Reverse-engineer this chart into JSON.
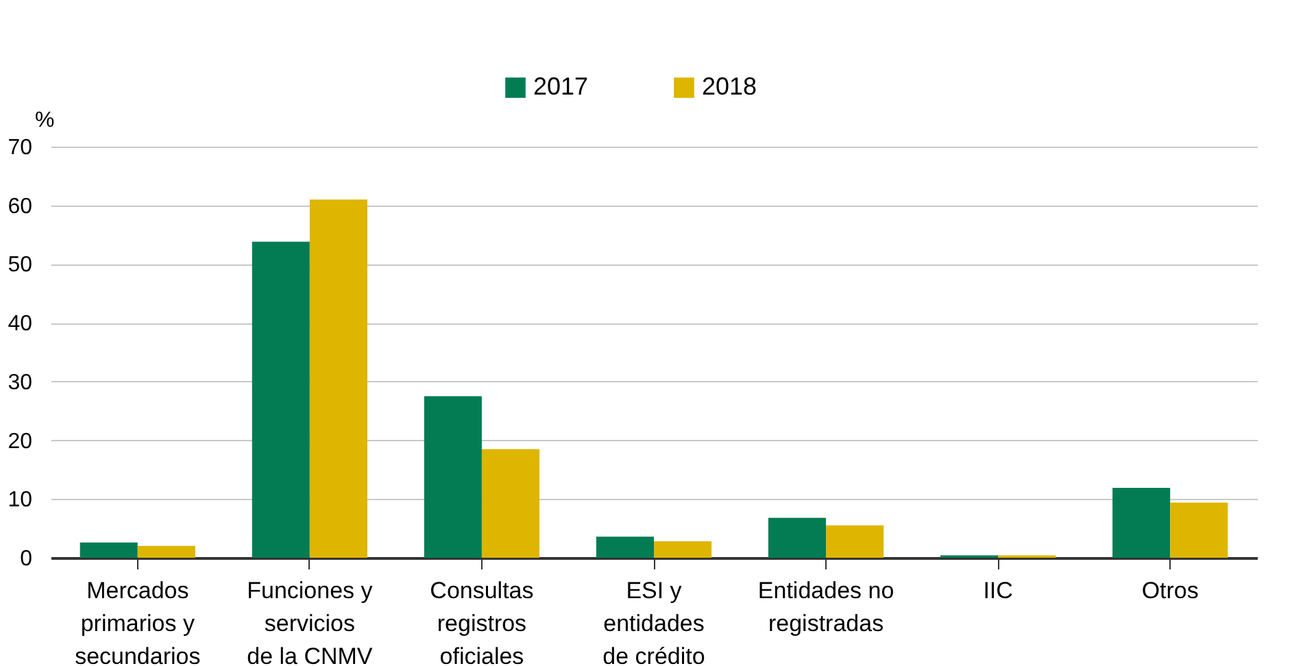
{
  "chart_data": {
    "type": "bar",
    "ylabel": "%",
    "categories": [
      "Mercados\nprimarios y\nsecundarios",
      "Funciones y\nservicios\nde la CNMV",
      "Consultas\nregistros\noficiales",
      "ESI y\nentidades\nde crédito",
      "Entidades no\nregistradas",
      "IIC",
      "Otros"
    ],
    "series": [
      {
        "name": "2017",
        "color": "#037c54",
        "values": [
          2.6,
          53.8,
          27.5,
          3.6,
          6.8,
          0.4,
          11.9
        ]
      },
      {
        "name": "2018",
        "color": "#deb500",
        "values": [
          2.0,
          61.0,
          18.5,
          2.8,
          5.5,
          0.4,
          9.4
        ]
      }
    ],
    "ylim": [
      0,
      70
    ],
    "yticks": [
      0,
      10,
      20,
      30,
      40,
      50,
      60,
      70
    ],
    "grid": "y",
    "legend": "top"
  }
}
